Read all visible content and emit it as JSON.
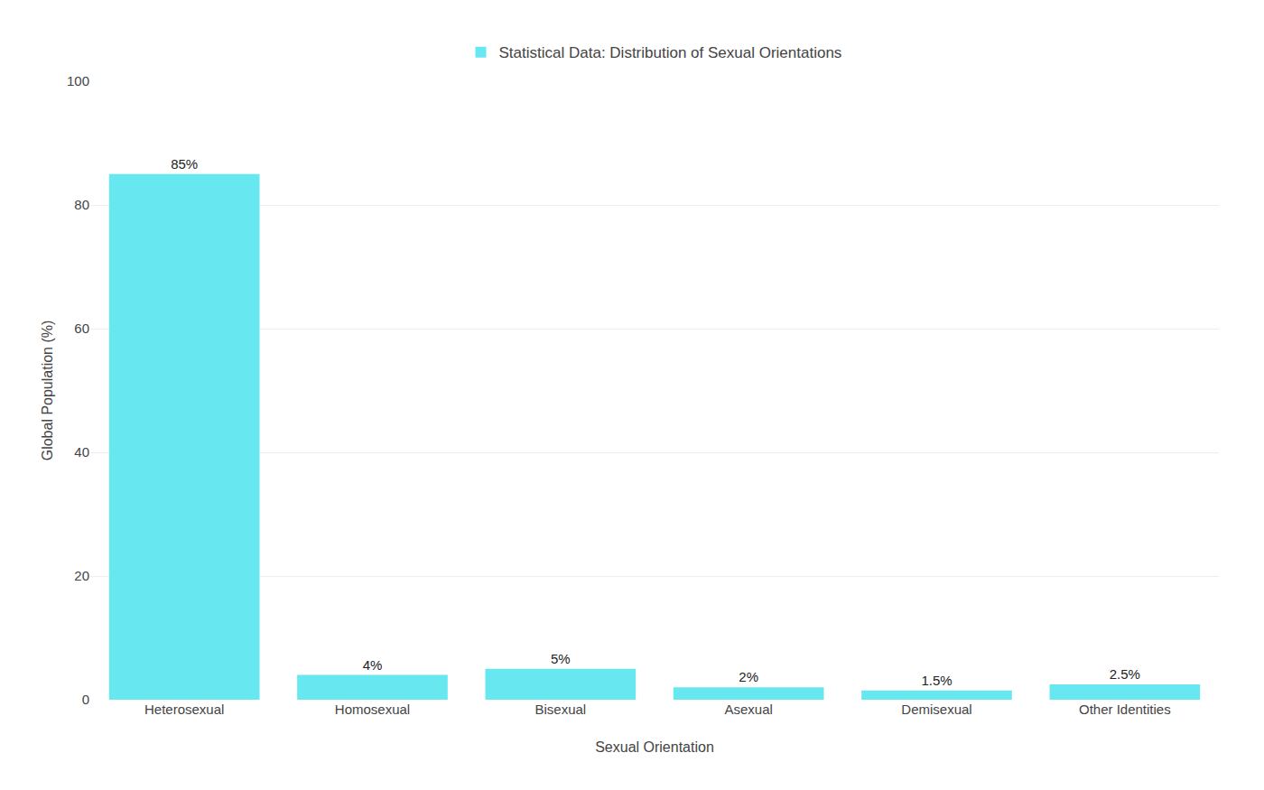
{
  "chart_data": {
    "type": "bar",
    "categories": [
      "Heterosexual",
      "Homosexual",
      "Bisexual",
      "Asexual",
      "Demisexual",
      "Other Identities"
    ],
    "series": [
      {
        "name": "Statistical Data: Distribution of Sexual Orientations",
        "color": "#67E8F0",
        "values": [
          85,
          4,
          5,
          2,
          1.5,
          2.5
        ],
        "value_labels": [
          "85%",
          "4%",
          "5%",
          "2%",
          "1.5%",
          "2.5%"
        ]
      }
    ],
    "xlabel": "Sexual Orientation",
    "ylabel": "Global Population (%)",
    "ylim": [
      0,
      100
    ],
    "yticks": [
      0,
      20,
      40,
      60,
      80,
      100
    ],
    "grid": true,
    "legend": "top"
  }
}
